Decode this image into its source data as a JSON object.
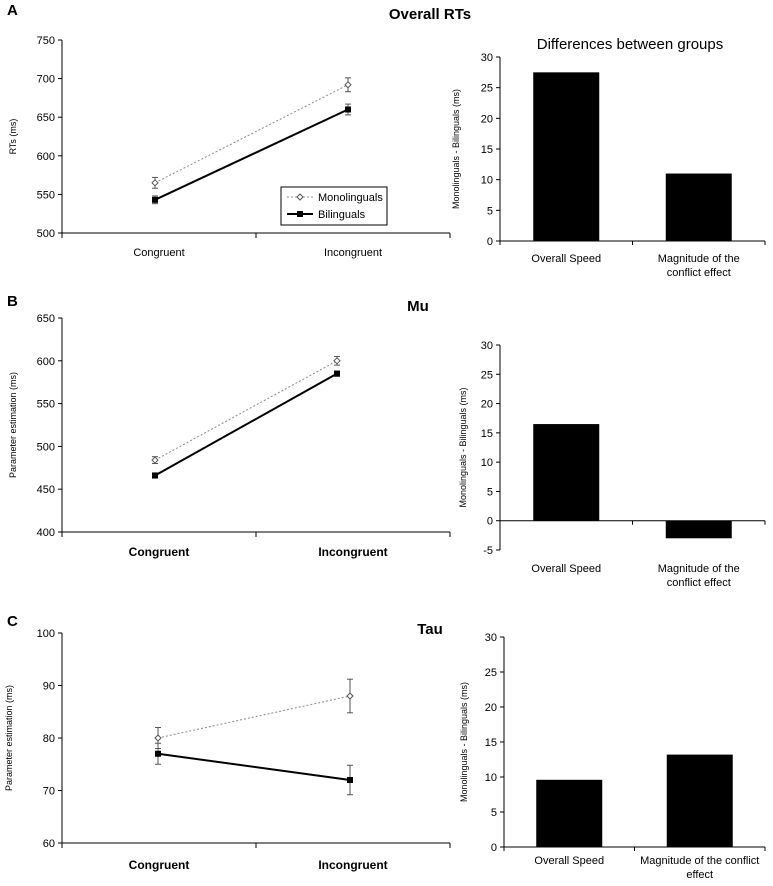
{
  "panels": [
    {
      "letter": "A"
    },
    {
      "letter": "B"
    },
    {
      "letter": "C"
    }
  ],
  "legend": {
    "mono": "Monolinguals",
    "bi": "Bilinguals"
  },
  "chart_data": [
    {
      "type": "line",
      "panel": "A",
      "title": "Overall RTs",
      "xlabel": "",
      "ylabel": "RTs (ms)",
      "categories": [
        "Congruent",
        "Incongruent"
      ],
      "ylim": [
        500,
        750
      ],
      "yticks": [
        500,
        550,
        600,
        650,
        700,
        750
      ],
      "series": [
        {
          "name": "Monolinguals",
          "values": [
            565,
            692
          ],
          "errors": [
            7,
            9
          ],
          "style": "dotted-diamond"
        },
        {
          "name": "Bilinguals",
          "values": [
            543,
            660
          ],
          "errors": [
            5,
            7
          ],
          "style": "solid-square"
        }
      ],
      "legend_position": "bottom-right"
    },
    {
      "type": "bar",
      "panel": "A",
      "title": "Differences between groups",
      "ylabel": "Monolinguals - Bilinguals (ms)",
      "categories": [
        "Overall Speed",
        "Magnitude of the conflict effect"
      ],
      "values": [
        27.5,
        11
      ],
      "ylim": [
        0,
        30
      ],
      "yticks": [
        0,
        5,
        10,
        15,
        20,
        25,
        30
      ]
    },
    {
      "type": "line",
      "panel": "B",
      "title": "Mu",
      "ylabel": "Parameter estimation (ms)",
      "categories": [
        "Congruent",
        "Incongruent"
      ],
      "ylim": [
        400,
        650
      ],
      "yticks": [
        400,
        450,
        500,
        550,
        600,
        650
      ],
      "series": [
        {
          "name": "Monolinguals",
          "values": [
            484,
            600
          ],
          "errors": [
            4,
            5
          ],
          "style": "dotted-diamond"
        },
        {
          "name": "Bilinguals",
          "values": [
            466,
            585
          ],
          "errors": [
            3,
            3
          ],
          "style": "solid-square"
        }
      ]
    },
    {
      "type": "bar",
      "panel": "B",
      "title": "",
      "ylabel": "Monolinguals - Bilinguals (ms)",
      "categories": [
        "Overall Speed",
        "Magnitude of the conflict effect"
      ],
      "values": [
        16.5,
        -3
      ],
      "ylim": [
        -5,
        30
      ],
      "yticks": [
        -5,
        0,
        5,
        10,
        15,
        20,
        25,
        30
      ]
    },
    {
      "type": "line",
      "panel": "C",
      "title": "Tau",
      "ylabel": "Parameter estimation (ms)",
      "categories": [
        "Congruent",
        "Incongruent"
      ],
      "ylim": [
        60,
        100
      ],
      "yticks": [
        60,
        70,
        80,
        90,
        100
      ],
      "series": [
        {
          "name": "Monolinguals",
          "values": [
            80,
            88
          ],
          "errors": [
            2,
            3.2
          ],
          "style": "dotted-diamond"
        },
        {
          "name": "Bilinguals",
          "values": [
            77,
            72
          ],
          "errors": [
            2,
            2.8
          ],
          "style": "solid-square"
        }
      ]
    },
    {
      "type": "bar",
      "panel": "C",
      "title": "",
      "ylabel": "Monolinguals - Bilinguals (ms)",
      "categories": [
        "Overall Speed",
        "Magnitude of the conflict effect"
      ],
      "values": [
        9.6,
        13.2
      ],
      "ylim": [
        0,
        30
      ],
      "yticks": [
        0,
        5,
        10,
        15,
        20,
        25,
        30
      ]
    }
  ]
}
